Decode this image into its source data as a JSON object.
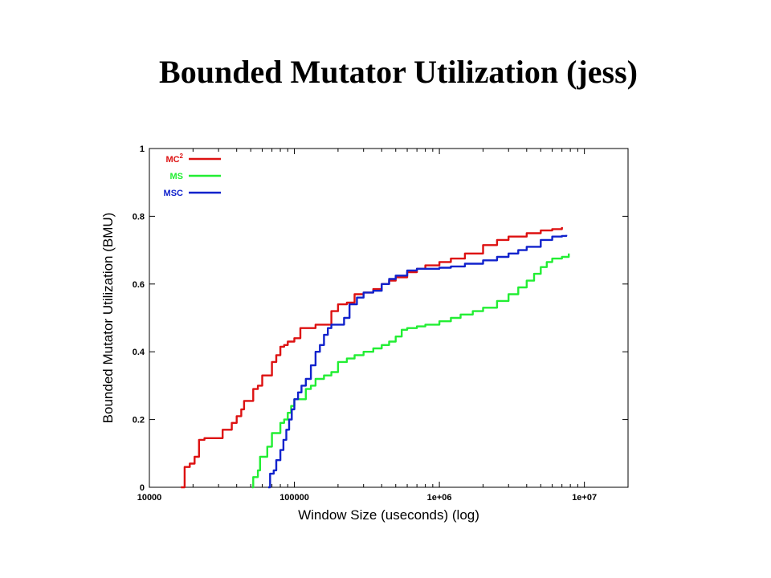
{
  "slide": {
    "title": "Bounded Mutator Utilization (jess)"
  },
  "chart_data": {
    "type": "line",
    "title": "Bounded Mutator Utilization (jess)",
    "xlabel": "Window Size (useconds) (log)",
    "ylabel": "Bounded Mutator Utilization (BMU)",
    "x_scale": "log",
    "xlim": [
      10000,
      20000000
    ],
    "ylim": [
      0,
      1
    ],
    "x_ticks": [
      10000,
      100000,
      1000000,
      10000000
    ],
    "x_tick_labels": [
      "10000",
      "100000",
      "1e+06",
      "1e+07"
    ],
    "y_ticks": [
      0,
      0.2,
      0.4,
      0.6,
      0.8,
      1
    ],
    "y_tick_labels": [
      "0",
      "0.2",
      "0.4",
      "0.6",
      "0.8",
      "1"
    ],
    "grid": false,
    "legend_position": "top-left",
    "series": [
      {
        "name": "MC²",
        "label_base": "MC",
        "label_sup": "2",
        "color": "#dd1111",
        "points": [
          [
            16500,
            0
          ],
          [
            17500,
            0.06
          ],
          [
            19000,
            0.07
          ],
          [
            20500,
            0.09
          ],
          [
            22000,
            0.14
          ],
          [
            24000,
            0.145
          ],
          [
            29000,
            0.145
          ],
          [
            32000,
            0.17
          ],
          [
            35000,
            0.17
          ],
          [
            37000,
            0.19
          ],
          [
            40000,
            0.21
          ],
          [
            43000,
            0.23
          ],
          [
            45000,
            0.255
          ],
          [
            49000,
            0.255
          ],
          [
            52000,
            0.29
          ],
          [
            56000,
            0.3
          ],
          [
            60000,
            0.33
          ],
          [
            66000,
            0.33
          ],
          [
            70000,
            0.37
          ],
          [
            75000,
            0.39
          ],
          [
            80000,
            0.415
          ],
          [
            85000,
            0.42
          ],
          [
            90000,
            0.43
          ],
          [
            100000,
            0.44
          ],
          [
            110000,
            0.47
          ],
          [
            125000,
            0.47
          ],
          [
            140000,
            0.48
          ],
          [
            160000,
            0.48
          ],
          [
            180000,
            0.52
          ],
          [
            200000,
            0.54
          ],
          [
            230000,
            0.545
          ],
          [
            260000,
            0.57
          ],
          [
            300000,
            0.575
          ],
          [
            350000,
            0.585
          ],
          [
            400000,
            0.6
          ],
          [
            450000,
            0.61
          ],
          [
            500000,
            0.62
          ],
          [
            600000,
            0.635
          ],
          [
            700000,
            0.645
          ],
          [
            800000,
            0.655
          ],
          [
            1000000,
            0.665
          ],
          [
            1200000,
            0.675
          ],
          [
            1500000,
            0.69
          ],
          [
            2000000,
            0.715
          ],
          [
            2500000,
            0.73
          ],
          [
            3000000,
            0.74
          ],
          [
            4000000,
            0.75
          ],
          [
            5000000,
            0.758
          ],
          [
            6000000,
            0.762
          ],
          [
            7000000,
            0.768
          ]
        ]
      },
      {
        "name": "MS",
        "color": "#22ee33",
        "points": [
          [
            51000,
            0
          ],
          [
            52000,
            0.03
          ],
          [
            56000,
            0.05
          ],
          [
            58000,
            0.09
          ],
          [
            62000,
            0.09
          ],
          [
            65000,
            0.12
          ],
          [
            70000,
            0.16
          ],
          [
            75000,
            0.16
          ],
          [
            80000,
            0.19
          ],
          [
            85000,
            0.2
          ],
          [
            90000,
            0.22
          ],
          [
            95000,
            0.24
          ],
          [
            100000,
            0.26
          ],
          [
            110000,
            0.26
          ],
          [
            120000,
            0.29
          ],
          [
            130000,
            0.3
          ],
          [
            140000,
            0.32
          ],
          [
            160000,
            0.33
          ],
          [
            180000,
            0.34
          ],
          [
            200000,
            0.37
          ],
          [
            230000,
            0.38
          ],
          [
            260000,
            0.39
          ],
          [
            300000,
            0.4
          ],
          [
            350000,
            0.41
          ],
          [
            400000,
            0.42
          ],
          [
            450000,
            0.43
          ],
          [
            500000,
            0.445
          ],
          [
            550000,
            0.465
          ],
          [
            600000,
            0.47
          ],
          [
            700000,
            0.475
          ],
          [
            800000,
            0.48
          ],
          [
            1000000,
            0.49
          ],
          [
            1200000,
            0.5
          ],
          [
            1400000,
            0.51
          ],
          [
            1700000,
            0.52
          ],
          [
            2000000,
            0.53
          ],
          [
            2500000,
            0.55
          ],
          [
            3000000,
            0.57
          ],
          [
            3500000,
            0.59
          ],
          [
            4000000,
            0.61
          ],
          [
            4500000,
            0.63
          ],
          [
            5000000,
            0.65
          ],
          [
            5500000,
            0.665
          ],
          [
            6000000,
            0.675
          ],
          [
            7000000,
            0.68
          ],
          [
            7800000,
            0.69
          ]
        ]
      },
      {
        "name": "MSC",
        "color": "#1122cc",
        "points": [
          [
            66000,
            0
          ],
          [
            68000,
            0.04
          ],
          [
            72000,
            0.05
          ],
          [
            75000,
            0.08
          ],
          [
            80000,
            0.11
          ],
          [
            84000,
            0.14
          ],
          [
            88000,
            0.17
          ],
          [
            92000,
            0.2
          ],
          [
            96000,
            0.23
          ],
          [
            100000,
            0.26
          ],
          [
            106000,
            0.28
          ],
          [
            112000,
            0.3
          ],
          [
            120000,
            0.32
          ],
          [
            130000,
            0.36
          ],
          [
            140000,
            0.4
          ],
          [
            150000,
            0.42
          ],
          [
            160000,
            0.45
          ],
          [
            170000,
            0.47
          ],
          [
            180000,
            0.48
          ],
          [
            200000,
            0.48
          ],
          [
            220000,
            0.5
          ],
          [
            240000,
            0.54
          ],
          [
            270000,
            0.56
          ],
          [
            300000,
            0.575
          ],
          [
            350000,
            0.58
          ],
          [
            400000,
            0.6
          ],
          [
            450000,
            0.615
          ],
          [
            500000,
            0.625
          ],
          [
            600000,
            0.64
          ],
          [
            700000,
            0.645
          ],
          [
            800000,
            0.645
          ],
          [
            1000000,
            0.648
          ],
          [
            1200000,
            0.652
          ],
          [
            1500000,
            0.66
          ],
          [
            2000000,
            0.67
          ],
          [
            2500000,
            0.68
          ],
          [
            3000000,
            0.69
          ],
          [
            3500000,
            0.7
          ],
          [
            4000000,
            0.71
          ],
          [
            5000000,
            0.73
          ],
          [
            6000000,
            0.74
          ],
          [
            7000000,
            0.742
          ],
          [
            7500000,
            0.745
          ]
        ]
      }
    ]
  }
}
